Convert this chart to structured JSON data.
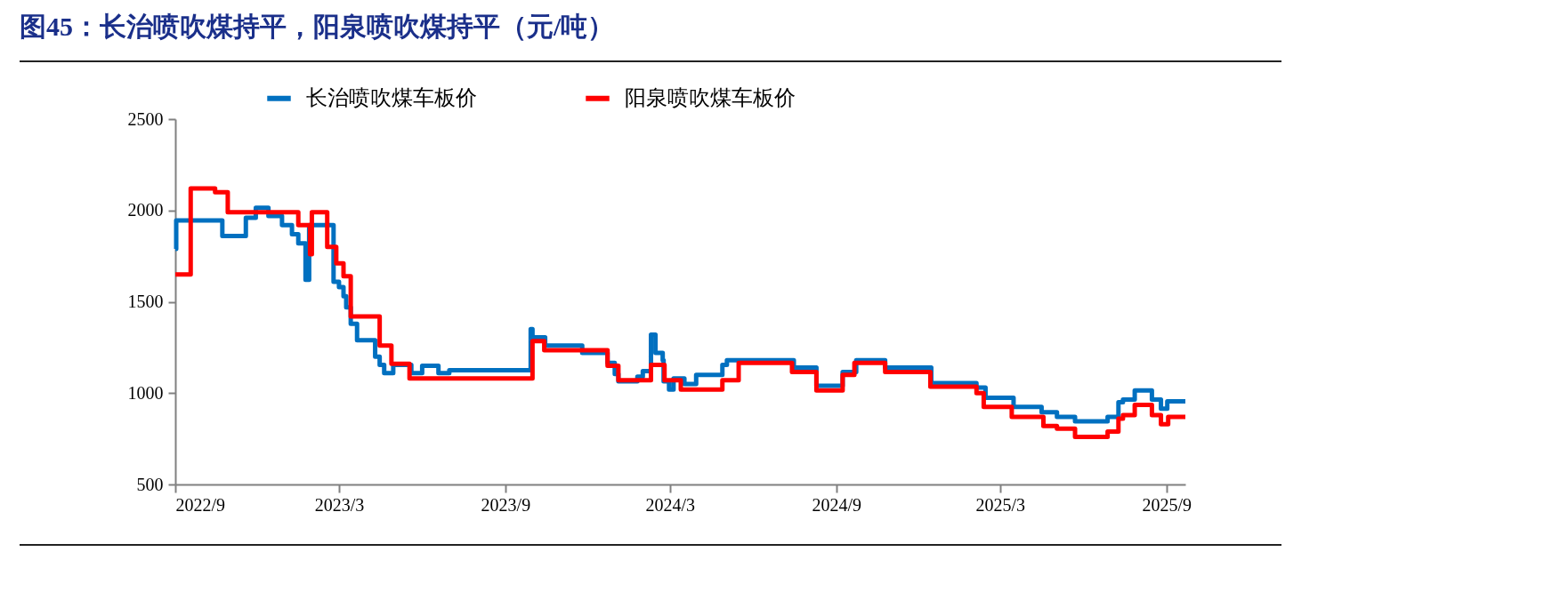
{
  "chart_data": {
    "type": "step",
    "title": "图45：长治喷吹煤持平，阳泉喷吹煤持平（元/吨）",
    "legend": "top",
    "grid": false,
    "xlim": [
      "2022-09-01",
      "2025-09-22"
    ],
    "xticks": [
      {
        "value": "2022-09-01",
        "label": "2022/9"
      },
      {
        "value": "2023-03-01",
        "label": "2023/3"
      },
      {
        "value": "2023-09-01",
        "label": "2023/9"
      },
      {
        "value": "2024-03-01",
        "label": "2024/3"
      },
      {
        "value": "2024-09-01",
        "label": "2024/9"
      },
      {
        "value": "2025-03-01",
        "label": "2025/3"
      },
      {
        "value": "2025-09-01",
        "label": "2025/9"
      }
    ],
    "ylim": [
      500,
      2500
    ],
    "yticks": [
      500,
      1000,
      1500,
      2000,
      2500
    ],
    "series": [
      {
        "name": "长治喷吹煤车板价",
        "color": "#0070c0",
        "x": [
          "2022-09-01",
          "2022-09-02",
          "2022-10-23",
          "2022-11-18",
          "2022-11-29",
          "2022-12-13",
          "2022-12-28",
          "2023-01-08",
          "2023-01-15",
          "2023-01-23",
          "2023-01-27",
          "2023-02-23",
          "2023-03-01",
          "2023-03-06",
          "2023-03-09",
          "2023-03-14",
          "2023-03-21",
          "2023-04-10",
          "2023-04-15",
          "2023-04-20",
          "2023-04-30",
          "2023-05-20",
          "2023-06-01",
          "2023-06-19",
          "2023-07-01",
          "2023-09-29",
          "2023-10-01",
          "2023-10-15",
          "2023-11-25",
          "2023-12-23",
          "2023-12-31",
          "2024-01-04",
          "2024-01-25",
          "2024-01-31",
          "2024-02-09",
          "2024-02-14",
          "2024-02-22",
          "2024-02-23",
          "2024-02-29",
          "2024-03-05",
          "2024-03-17",
          "2024-03-30",
          "2024-04-28",
          "2024-05-03",
          "2024-07-16",
          "2024-08-10",
          "2024-09-08",
          "2024-09-23",
          "2024-10-25",
          "2024-12-15",
          "2025-02-03",
          "2025-02-13",
          "2025-03-16",
          "2025-04-16",
          "2025-05-03",
          "2025-05-23",
          "2025-06-28",
          "2025-07-10",
          "2025-07-15",
          "2025-07-28",
          "2025-08-16",
          "2025-08-26",
          "2025-09-02",
          "2025-09-22"
        ],
        "values": [
          1790,
          1945,
          1860,
          1960,
          2015,
          1970,
          1920,
          1870,
          1820,
          1620,
          1920,
          1610,
          1580,
          1530,
          1470,
          1380,
          1290,
          1200,
          1155,
          1110,
          1155,
          1110,
          1150,
          1110,
          1125,
          1350,
          1305,
          1260,
          1220,
          1165,
          1105,
          1065,
          1090,
          1120,
          1320,
          1220,
          1180,
          1065,
          1020,
          1080,
          1050,
          1100,
          1155,
          1180,
          1140,
          1040,
          1115,
          1180,
          1140,
          1055,
          1030,
          975,
          925,
          895,
          870,
          845,
          870,
          950,
          965,
          1015,
          965,
          915,
          955,
          955
        ]
      },
      {
        "name": "阳泉喷吹煤车板价",
        "color": "#ff0000",
        "x": [
          "2022-09-01",
          "2022-09-18",
          "2022-10-15",
          "2022-10-29",
          "2023-01-15",
          "2023-01-28",
          "2023-01-30",
          "2023-02-16",
          "2023-02-26",
          "2023-03-06",
          "2023-03-14",
          "2023-04-15",
          "2023-04-28",
          "2023-05-18",
          "2023-10-01",
          "2023-10-14",
          "2023-12-23",
          "2024-01-04",
          "2024-02-09",
          "2024-02-24",
          "2024-03-13",
          "2024-04-28",
          "2024-05-16",
          "2024-07-14",
          "2024-08-10",
          "2024-09-08",
          "2024-09-21",
          "2024-10-25",
          "2024-12-14",
          "2025-02-03",
          "2025-02-11",
          "2025-03-14",
          "2025-04-18",
          "2025-05-03",
          "2025-05-23",
          "2025-06-28",
          "2025-07-10",
          "2025-07-15",
          "2025-07-28",
          "2025-08-16",
          "2025-08-26",
          "2025-09-03",
          "2025-09-22"
        ],
        "values": [
          1650,
          2120,
          2100,
          1990,
          1920,
          1760,
          1990,
          1800,
          1710,
          1640,
          1420,
          1260,
          1160,
          1080,
          1285,
          1235,
          1150,
          1070,
          1155,
          1070,
          1020,
          1070,
          1165,
          1115,
          1015,
          1100,
          1165,
          1115,
          1035,
          1000,
          925,
          870,
          820,
          805,
          760,
          790,
          860,
          880,
          935,
          880,
          830,
          870,
          870
        ]
      }
    ]
  }
}
